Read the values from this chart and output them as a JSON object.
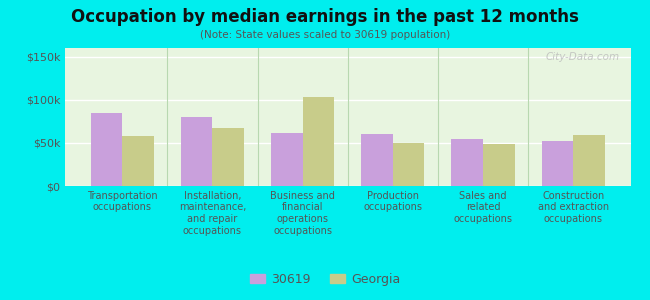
{
  "title": "Occupation by median earnings in the past 12 months",
  "subtitle": "(Note: State values scaled to 30619 population)",
  "categories": [
    "Transportation\noccupations",
    "Installation,\nmaintenance,\nand repair\noccupations",
    "Business and\nfinancial\noperations\noccupations",
    "Production\noccupations",
    "Sales and\nrelated\noccupations",
    "Construction\nand extraction\noccupations"
  ],
  "values_30619": [
    85000,
    80000,
    62000,
    60000,
    55000,
    52000
  ],
  "values_georgia": [
    58000,
    67000,
    103000,
    50000,
    49000,
    59000
  ],
  "color_30619": "#c9a0dc",
  "color_georgia": "#c8cc8a",
  "bar_width": 0.35,
  "ylim": [
    0,
    160000
  ],
  "yticks": [
    0,
    50000,
    100000,
    150000
  ],
  "ytick_labels": [
    "$0",
    "$50k",
    "$100k",
    "$150k"
  ],
  "background_color": "#00EEEE",
  "plot_bg_color": "#e8f5e0",
  "legend_label_30619": "30619",
  "legend_label_georgia": "Georgia",
  "watermark": "City-Data.com"
}
